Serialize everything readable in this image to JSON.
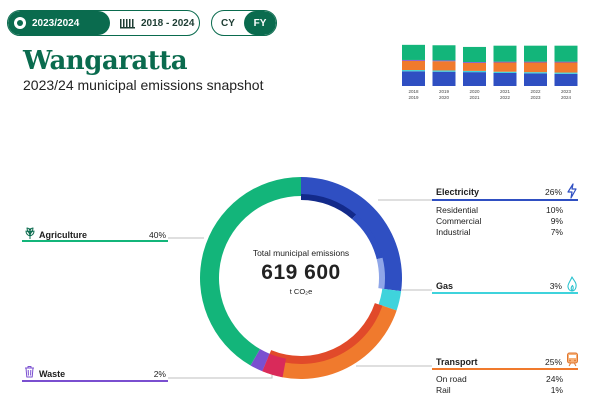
{
  "controls": {
    "period_active": "2023/2024",
    "period_inactive": "2018 - 2024",
    "year_cy": "CY",
    "year_fy": "FY"
  },
  "title": "Wangaratta",
  "subtitle": "2023/24 municipal emissions snapshot",
  "colors": {
    "brand": "#0a6b4e",
    "agriculture": "#13b57a",
    "electricity": "#2f4fc2",
    "electricity_dark": "#132a8a",
    "electricity_light": "#8fa6e8",
    "gas": "#3fd3dc",
    "transport": "#f07a2d",
    "transport_red": "#e14a2a",
    "waste": "#7a4fd0",
    "waste_red": "#d92a5a"
  },
  "center": {
    "label": "Total municipal emissions",
    "value": "619 600",
    "unit": "t CO₂e"
  },
  "chart_data": [
    {
      "type": "pie",
      "title": "Total municipal emissions",
      "total": 619600,
      "unit": "t CO₂e",
      "categories": [
        "Electricity",
        "Gas",
        "Transport",
        "Waste",
        "Agriculture"
      ],
      "values": [
        26,
        3,
        25,
        2,
        40
      ],
      "breakdown": {
        "Electricity": {
          "labels": [
            "Residential",
            "Commercial",
            "Industrial"
          ],
          "values": [
            10,
            9,
            7
          ]
        },
        "Transport": {
          "labels": [
            "On road",
            "Rail"
          ],
          "values": [
            24,
            1
          ]
        }
      },
      "labels_display": {
        "Electricity": "26%",
        "Gas": "3%",
        "Transport": "25%",
        "Waste": "2%",
        "Agriculture": "40%",
        "Residential": "10%",
        "Commercial": "9%",
        "Industrial": "7%",
        "On road": "24%",
        "Rail": "1%"
      }
    },
    {
      "type": "bar",
      "stacked": true,
      "categories": [
        "2018 2019",
        "2019 2020",
        "2020 2021",
        "2021 2022",
        "2022 2023",
        "2023 2024"
      ],
      "series": [
        {
          "name": "Electricity",
          "values": [
            0.35,
            0.34,
            0.33,
            0.31,
            0.3,
            0.29
          ]
        },
        {
          "name": "Gas",
          "values": [
            0.03,
            0.03,
            0.03,
            0.03,
            0.03,
            0.03
          ]
        },
        {
          "name": "Transport",
          "values": [
            0.22,
            0.22,
            0.19,
            0.22,
            0.23,
            0.24
          ]
        },
        {
          "name": "Waste",
          "values": [
            0.02,
            0.02,
            0.02,
            0.02,
            0.02,
            0.02
          ]
        },
        {
          "name": "Agriculture",
          "values": [
            0.36,
            0.36,
            0.36,
            0.38,
            0.38,
            0.38
          ]
        }
      ],
      "totals": [
        0.98,
        0.97,
        0.93,
        0.96,
        0.96,
        0.96
      ]
    }
  ],
  "mini_labels": [
    {
      "top": "2018",
      "bottom": "2019"
    },
    {
      "top": "2019",
      "bottom": "2020"
    },
    {
      "top": "2020",
      "bottom": "2021"
    },
    {
      "top": "2021",
      "bottom": "2022"
    },
    {
      "top": "2022",
      "bottom": "2023"
    },
    {
      "top": "2023",
      "bottom": "2024"
    }
  ],
  "sectors": {
    "electricity": {
      "label": "Electricity",
      "pct": "26%",
      "icon": "lightning-icon",
      "subs": [
        {
          "label": "Residential",
          "pct": "10%"
        },
        {
          "label": "Commercial",
          "pct": "9%"
        },
        {
          "label": "Industrial",
          "pct": "7%"
        }
      ]
    },
    "gas": {
      "label": "Gas",
      "pct": "3%",
      "icon": "flame-icon"
    },
    "transport": {
      "label": "Transport",
      "pct": "25%",
      "icon": "train-icon",
      "subs": [
        {
          "label": "On road",
          "pct": "24%"
        },
        {
          "label": "Rail",
          "pct": "1%"
        }
      ]
    },
    "agriculture": {
      "label": "Agriculture",
      "pct": "40%",
      "icon": "plant-icon"
    },
    "waste": {
      "label": "Waste",
      "pct": "2%",
      "icon": "bin-icon"
    }
  }
}
